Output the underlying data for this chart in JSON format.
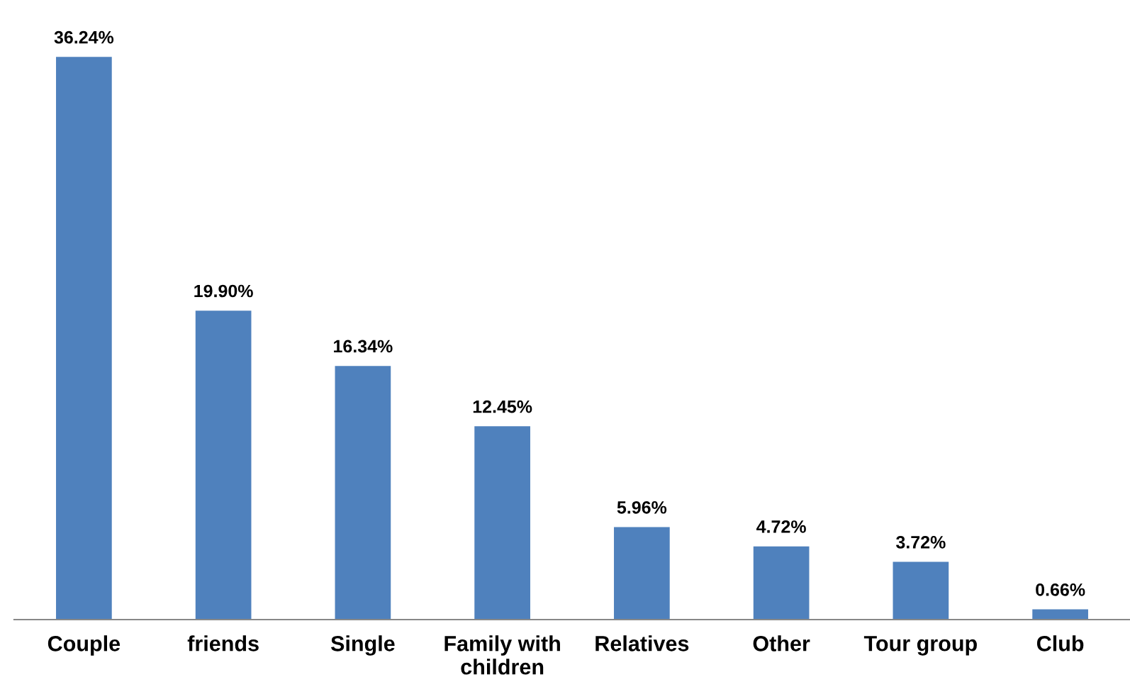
{
  "chart_data": {
    "type": "bar",
    "categories": [
      "Couple",
      "friends",
      "Single",
      "Family with\nchildren",
      "Relatives",
      "Other",
      "Tour group",
      "Club"
    ],
    "values": [
      36.24,
      19.9,
      16.34,
      12.45,
      5.96,
      4.72,
      3.72,
      0.66
    ],
    "value_labels": [
      "36.24%",
      "19.90%",
      "16.34%",
      "12.45%",
      "5.96%",
      "4.72%",
      "3.72%",
      "0.66%"
    ],
    "color": "#4f81bd",
    "grid": false,
    "legend": false
  }
}
